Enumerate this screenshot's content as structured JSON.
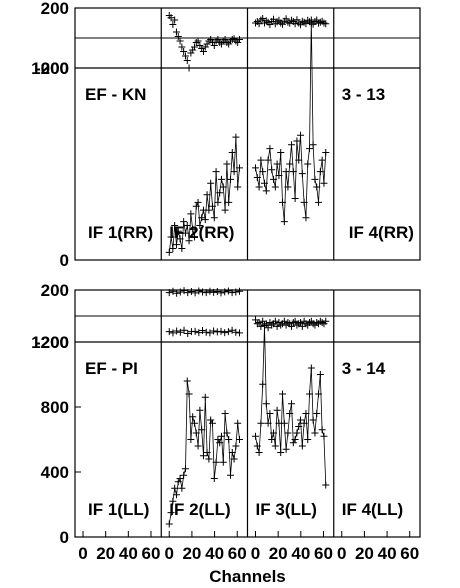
{
  "chart_data": {
    "type": "scatter",
    "xlabel": "Channels",
    "x_ticks": [
      "0",
      "20",
      "40",
      "60"
    ],
    "baselines": [
      {
        "name": "EF - KN",
        "scan": "3 - 13",
        "phase": {
          "ylim": [
            -200,
            200
          ],
          "yticks": [
            "200",
            "-200"
          ],
          "if2": [
            150,
            135,
            90,
            120,
            40,
            10,
            -20,
            -60,
            -90,
            -120,
            -150,
            -200,
            -100,
            -80,
            -60,
            -30,
            -20,
            -50,
            -70,
            -90,
            -60,
            -40,
            -20,
            -10,
            -30,
            -50,
            -20,
            -10,
            -30,
            -40,
            -20,
            -10,
            -30,
            -40,
            -20,
            -10,
            -5,
            -20,
            -30,
            -10
          ],
          "if3": [
            100,
            110,
            95,
            120,
            130,
            100,
            115,
            105,
            90,
            110,
            125,
            95,
            108,
            118,
            100,
            92,
            112,
            128,
            105,
            98,
            118,
            110,
            95,
            122,
            100,
            88,
            112,
            105,
            96,
            118,
            108,
            100,
            92,
            110,
            120,
            98,
            105,
            112,
            100,
            95
          ]
        },
        "amp": {
          "ylim": [
            0,
            1000
          ],
          "yticks": [
            "1000",
            "0"
          ],
          "if2": [
            40,
            120,
            60,
            180,
            80,
            150,
            110,
            60,
            200,
            140,
            180,
            100,
            240,
            160,
            120,
            280,
            300,
            180,
            220,
            260,
            210,
            340,
            260,
            400,
            280,
            220,
            460,
            300,
            350,
            420,
            380,
            260,
            500,
            300,
            420,
            560,
            460,
            640,
            380,
            480
          ],
          "if3": [
            480,
            430,
            380,
            520,
            460,
            400,
            360,
            520,
            580,
            470,
            420,
            380,
            500,
            440,
            560,
            300,
            200,
            460,
            380,
            500,
            600,
            460,
            320,
            620,
            520,
            650,
            450,
            300,
            220,
            500,
            580,
            1250,
            600,
            420,
            380,
            300,
            460,
            520,
            400,
            560
          ],
          "labels": [
            "IF 1(RR)",
            "IF 2(RR)",
            "",
            "IF 4(RR)"
          ]
        }
      },
      {
        "name": "EF - PI",
        "scan": "3 - 14",
        "phase": {
          "ylim": [
            -200,
            200
          ],
          "yticks": [
            "200",
            "-200"
          ],
          "if2_upper": [
            180,
            190,
            175,
            185,
            195,
            180,
            188,
            178,
            192,
            185,
            180,
            190,
            182,
            188,
            178,
            186,
            192,
            180,
            185,
            190
          ],
          "if2_lower": [
            -120,
            -130,
            -115,
            -125,
            -110,
            -135,
            -120,
            -118,
            -128,
            -112,
            -125,
            -130,
            -115,
            -122,
            -118,
            -128,
            -120,
            -110,
            -125,
            -130
          ],
          "if3": [
            -30,
            -60,
            -50,
            -80,
            -40,
            -70,
            -60,
            -90,
            -50,
            -70,
            -60,
            -40,
            -80,
            -50,
            -70,
            -60,
            -40,
            -70,
            -50,
            -60,
            -80,
            -50,
            -40,
            -70,
            -60,
            -50,
            -80,
            -40,
            -60,
            -70,
            -50,
            -40,
            -60,
            -70,
            -50,
            -60,
            -40,
            -50,
            -60,
            -40
          ]
        },
        "amp": {
          "ylim": [
            0,
            1200
          ],
          "yticks": [
            "1200",
            "800",
            "400",
            "0"
          ],
          "if2": [
            80,
            150,
            220,
            300,
            260,
            340,
            360,
            300,
            380,
            420,
            960,
            880,
            600,
            740,
            700,
            640,
            560,
            780,
            660,
            500,
            860,
            520,
            480,
            720,
            700,
            360,
            460,
            600,
            580,
            620,
            460,
            760,
            640,
            600,
            380,
            520,
            480,
            560,
            700,
            600
          ],
          "if3": [
            620,
            560,
            520,
            700,
            940,
            1300,
            820,
            700,
            760,
            600,
            640,
            560,
            780,
            700,
            520,
            880,
            700,
            540,
            640,
            760,
            820,
            580,
            600,
            640,
            680,
            720,
            560,
            700,
            760,
            600,
            880,
            1040,
            720,
            640,
            760,
            880,
            1000,
            660,
            620,
            320
          ],
          "labels": [
            "IF 1(LL)",
            "IF 2(LL)",
            "IF 3(LL)",
            "IF 4(LL)"
          ]
        }
      }
    ]
  }
}
